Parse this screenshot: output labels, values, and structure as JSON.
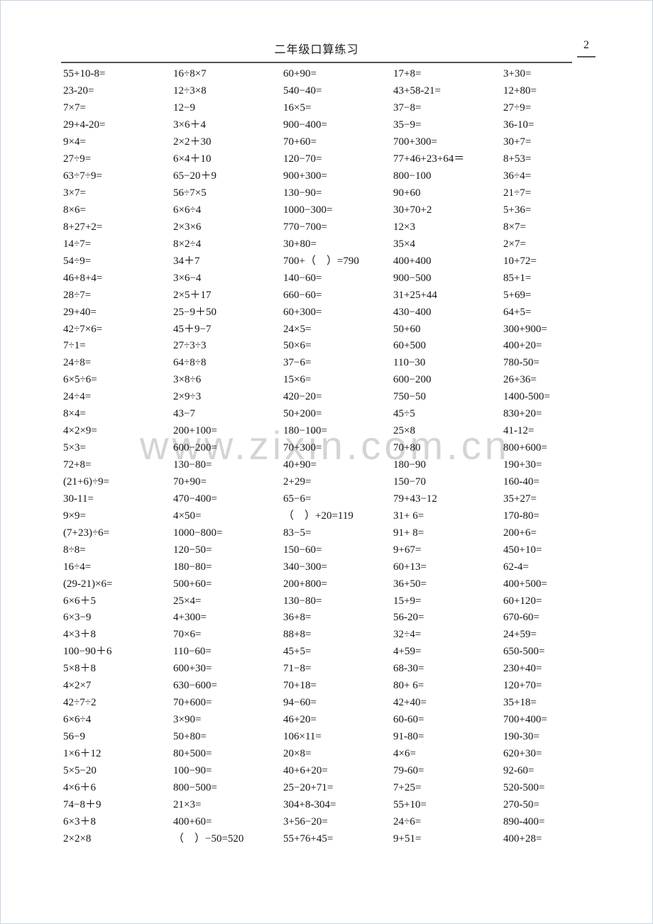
{
  "header": {
    "title": "二年级口算练习",
    "page_number": "2"
  },
  "watermark": "www.zixin.com.cn",
  "colors": {
    "rule": "#525254",
    "watermark": "#d4d4d4",
    "text": "#141414"
  },
  "problems": {
    "rows": [
      [
        "55+10-8=",
        "16÷8×7",
        "60+90=",
        "17+8=",
        "3+30="
      ],
      [
        "23-20=",
        "12÷3×8",
        "540−40=",
        "43+58-21=",
        "12+80="
      ],
      [
        "7×7=",
        "12−9",
        "16×5=",
        "37−8=",
        "27÷9="
      ],
      [
        "29+4-20=",
        "3×6＋4",
        "900−400=",
        "35−9=",
        "36-10="
      ],
      [
        "9×4=",
        "2×2＋30",
        "70+60=",
        "700+300=",
        "30+7="
      ],
      [
        "27÷9=",
        "6×4＋10",
        "120−70=",
        "77+46+23+64＝",
        "8+53="
      ],
      [
        "63÷7÷9=",
        "65−20＋9",
        "900+300=",
        "800−100",
        "36÷4="
      ],
      [
        "3×7=",
        "56÷7×5",
        "130−90=",
        "90+60",
        "21÷7="
      ],
      [
        "8×6=",
        "6×6÷4",
        "1000−300=",
        "30+70+2",
        "5+36="
      ],
      [
        "8+27+2=",
        "2×3×6",
        "770−700=",
        "12×3",
        "8×7="
      ],
      [
        "14÷7=",
        "8×2÷4",
        "30+80=",
        "35×4",
        "2×7="
      ],
      [
        "54÷9=",
        "34＋7",
        "700+（　）=790",
        "400+400",
        "10+72="
      ],
      [
        "46+8+4=",
        "3×6−4",
        "140−60=",
        "900−500",
        "85+1="
      ],
      [
        "28÷7=",
        "2×5＋17",
        "660−60=",
        "31+25+44",
        "5+69="
      ],
      [
        "29+40=",
        "25−9＋50",
        "60+300=",
        "430−400",
        "64+5="
      ],
      [
        "42÷7×6=",
        "45＋9−7",
        "24×5=",
        "50+60",
        "300+900="
      ],
      [
        "7÷1=",
        "27÷3÷3",
        "50×6=",
        "60+500",
        "400+20="
      ],
      [
        "24÷8=",
        "64÷8÷8",
        "37−6=",
        "110−30",
        "780-50="
      ],
      [
        "6×5÷6=",
        "3×8÷6",
        "15×6=",
        "600−200",
        "26+36="
      ],
      [
        "24÷4=",
        "2×9÷3",
        "420−20=",
        "750−50",
        "1400-500="
      ],
      [
        "8×4=",
        "43−7",
        "50+200=",
        "45÷5",
        "830+20="
      ],
      [
        "4×2×9=",
        "200+100=",
        "180−100=",
        "25×8",
        "41-12="
      ],
      [
        "5×3=",
        "600−200=",
        "70+300=",
        "70+80",
        "800+600="
      ],
      [
        "72+8=",
        "130−80=",
        "40+90=",
        "180−90",
        "190+30="
      ],
      [
        "(21+6)÷9=",
        "70+90=",
        "2+29=",
        "150−70",
        "160-40="
      ],
      [
        "30-11=",
        "470−400=",
        "65−6=",
        "79+43−12",
        "35+27="
      ],
      [
        "9×9=",
        "4×50=",
        "（　）+20=119",
        "31+ 6=",
        "170-80="
      ],
      [
        "(7+23)÷6=",
        "1000−800=",
        "83−5=",
        "91+ 8=",
        "200+6="
      ],
      [
        "8÷8=",
        "120−50=",
        "150−60=",
        "9+67=",
        "450+10="
      ],
      [
        "16÷4=",
        "180−80=",
        "340−300=",
        "60+13=",
        "62-4="
      ],
      [
        "(29-21)×6=",
        "500+60=",
        "200+800=",
        "36+50=",
        "400+500="
      ],
      [
        "6×6＋5",
        "25×4=",
        "130−80=",
        "15+9=",
        "60+120="
      ],
      [
        "6×3−9",
        "4+300=",
        "36+8=",
        "56-20=",
        "670-60="
      ],
      [
        "4×3＋8",
        "70×6=",
        "88+8=",
        "32÷4=",
        "24+59="
      ],
      [
        "100−90＋6",
        "110−60=",
        "45+5=",
        "4+59=",
        "650-500="
      ],
      [
        "5×8＋8",
        "600+30=",
        "71−8=",
        "68-30=",
        "230+40="
      ],
      [
        "4×2×7",
        "630−600=",
        "70+18=",
        "80+ 6=",
        "120+70="
      ],
      [
        "42÷7÷2",
        "70+600=",
        "94−60=",
        "42+40=",
        "35+18="
      ],
      [
        "6×6÷4",
        "3×90=",
        "46+20=",
        "60-60=",
        "700+400="
      ],
      [
        "56−9",
        "50+80=",
        "106×11=",
        "91-80=",
        "190-30="
      ],
      [
        "1×6＋12",
        "80+500=",
        "20×8=",
        "4×6=",
        "620+30="
      ],
      [
        "5×5−20",
        "100−90=",
        "40+6+20=",
        "79-60=",
        "92-60="
      ],
      [
        "4×6＋6",
        "800−500=",
        "25−20+71=",
        "7+25=",
        "520-500="
      ],
      [
        "74−8＋9",
        "21×3=",
        "304+8-304=",
        "55+10=",
        "270-50="
      ],
      [
        "6×3＋8",
        "400+60=",
        "3+56−20=",
        "24÷6=",
        "890-400="
      ],
      [
        "2×2×8",
        "（　）−50=520",
        "55+76+45=",
        "9+51=",
        "400+28="
      ]
    ]
  }
}
